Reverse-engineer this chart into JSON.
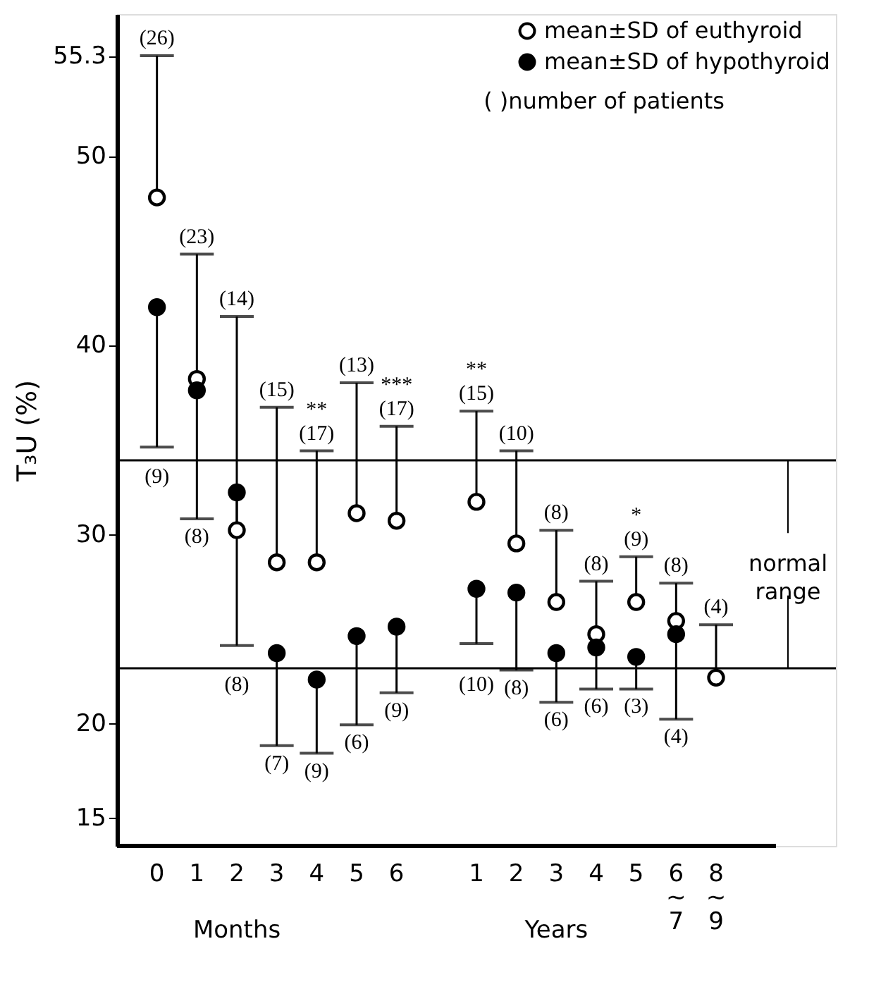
{
  "chart_data": {
    "type": "scatter",
    "ylabel": "T₃U (%)",
    "categories": [
      "0",
      "1",
      "2",
      "3",
      "4",
      "5",
      "6",
      "1",
      "2",
      "3",
      "4",
      "5",
      "6 ~ 7",
      "8 ~ 9"
    ],
    "series": [
      {
        "name": "mean±SD of euthyroid",
        "color": "#ffffff",
        "values": [
          47.8,
          38.2,
          30.2,
          28.5,
          28.5,
          31.1,
          30.7,
          31.7,
          29.5,
          26.4,
          24.7,
          26.4,
          25.4,
          22.4
        ],
        "errors": [
          [
            47.8,
            55.3
          ],
          [
            38.2,
            44.8
          ],
          [
            30.2,
            41.5
          ],
          [
            28.5,
            36.7
          ],
          [
            28.5,
            34.4
          ],
          [
            31.1,
            38.0
          ],
          [
            30.7,
            35.7
          ],
          [
            31.7,
            36.5
          ],
          [
            29.5,
            34.4
          ],
          [
            26.4,
            30.2
          ],
          [
            24.7,
            27.5
          ],
          [
            26.4,
            28.8
          ],
          [
            25.4,
            27.4
          ],
          [
            22.4,
            25.2
          ]
        ]
      },
      {
        "name": "mean±SD of hypothyroid",
        "color": "#000000",
        "values": [
          42.0,
          37.6,
          32.2,
          23.7,
          22.3,
          24.6,
          25.1,
          27.1,
          26.9,
          23.7,
          24.0,
          23.5,
          24.7,
          null
        ],
        "errors": [
          [
            34.6,
            42.0
          ],
          [
            30.8,
            37.6
          ],
          [
            24.1,
            32.2
          ],
          [
            18.8,
            23.7
          ],
          [
            18.4,
            22.3
          ],
          [
            19.9,
            24.6
          ],
          [
            21.6,
            25.1
          ],
          [
            24.2,
            27.1
          ],
          [
            22.8,
            26.9
          ],
          [
            21.1,
            23.7
          ],
          [
            21.8,
            24.0
          ],
          [
            21.8,
            23.5
          ],
          [
            20.2,
            24.7
          ],
          null
        ]
      }
    ],
    "marker": "circle",
    "ylim": [
      13.5,
      57.5
    ],
    "yticks": [
      15,
      20,
      30,
      40,
      50,
      {
        "value": 55.3,
        "label": "55.3"
      }
    ],
    "ref_lines": [
      {
        "axis": "y",
        "value": 33.9
      },
      {
        "axis": "y",
        "value": 22.9
      }
    ],
    "annotations": [
      "( )number of patients",
      "Months",
      "Years",
      "normal range",
      "(26)",
      "(23)",
      "(14)",
      "(15)",
      "**\n(17)",
      "(13)",
      "***\n(17)",
      "**\n(15)",
      "(10)",
      "(8)",
      "(8)",
      "*\n(9)",
      "(8)",
      "(4)",
      "(9)",
      "(8)",
      "(8)",
      "(7)",
      "(9)",
      "(6)",
      "(9)",
      "(10)",
      "(8)",
      "(6)",
      "(6)",
      "(3)",
      "(4)"
    ],
    "legend": "top right",
    "grid": false
  }
}
